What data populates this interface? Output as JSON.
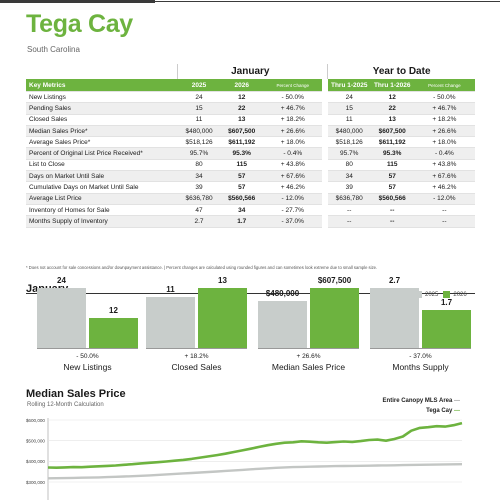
{
  "header": {
    "title": "Tega Cay",
    "subtitle": "South Carolina"
  },
  "table": {
    "group_headers": [
      "January",
      "Year to Date"
    ],
    "columns": [
      "Key Metrics",
      "2025",
      "2026",
      "Percent Change",
      "Thru 1-2025",
      "Thru 1-2026",
      "Percent Change"
    ],
    "rows": [
      [
        "New Listings",
        "24",
        "12",
        "- 50.0%",
        "24",
        "12",
        "- 50.0%"
      ],
      [
        "Pending Sales",
        "15",
        "22",
        "+ 46.7%",
        "15",
        "22",
        "+ 46.7%"
      ],
      [
        "Closed Sales",
        "11",
        "13",
        "+ 18.2%",
        "11",
        "13",
        "+ 18.2%"
      ],
      [
        "Median Sales Price*",
        "$480,000",
        "$607,500",
        "+ 26.6%",
        "$480,000",
        "$607,500",
        "+ 26.6%"
      ],
      [
        "Average Sales Price*",
        "$518,126",
        "$611,192",
        "+ 18.0%",
        "$518,126",
        "$611,192",
        "+ 18.0%"
      ],
      [
        "Percent of Original List Price Received*",
        "95.7%",
        "95.3%",
        "- 0.4%",
        "95.7%",
        "95.3%",
        "- 0.4%"
      ],
      [
        "List to Close",
        "80",
        "115",
        "+ 43.8%",
        "80",
        "115",
        "+ 43.8%"
      ],
      [
        "Days on Market Until Sale",
        "34",
        "57",
        "+ 67.6%",
        "34",
        "57",
        "+ 67.6%"
      ],
      [
        "Cumulative Days on Market Until Sale",
        "39",
        "57",
        "+ 46.2%",
        "39",
        "57",
        "+ 46.2%"
      ],
      [
        "Average List Price",
        "$636,780",
        "$560,566",
        "- 12.0%",
        "$636,780",
        "$560,566",
        "- 12.0%"
      ],
      [
        "Inventory of Homes for Sale",
        "47",
        "34",
        "- 27.7%",
        "--",
        "--",
        "--"
      ],
      [
        "Months Supply of Inventory",
        "2.7",
        "1.7",
        "- 37.0%",
        "--",
        "--",
        "--"
      ]
    ],
    "footnote": "* Does not account for sale concessions and/or downpayment assistance.  |  Percent changes are calculated using rounded figures and can sometimes look extreme due to small sample size."
  },
  "colors": {
    "green": "#6db33f",
    "gray": "#c8cdcb",
    "dark_gray": "#c3c6c4"
  },
  "chart_data": [
    {
      "type": "bar",
      "title": "January",
      "legend": [
        "2025",
        "2026"
      ],
      "legend_position": "top-right",
      "groups": [
        {
          "category": "New Listings",
          "change": "- 50.0%",
          "values": [
            24,
            12
          ],
          "labels": [
            "24",
            "12"
          ]
        },
        {
          "category": "Closed Sales",
          "change": "+ 18.2%",
          "values": [
            11,
            13
          ],
          "labels": [
            "11",
            "13"
          ]
        },
        {
          "category": "Median Sales Price",
          "change": "+ 26.6%",
          "values": [
            480000,
            607500
          ],
          "labels": [
            "$480,000",
            "$607,500"
          ]
        },
        {
          "category": "Months Supply",
          "change": "- 37.0%",
          "values": [
            2.7,
            1.7
          ],
          "labels": [
            "2.7",
            "1.7"
          ]
        }
      ]
    },
    {
      "type": "line",
      "title": "Median Sales Price",
      "subtitle": "Rolling 12-Month Calculation",
      "series": [
        {
          "name": "Entire Canopy MLS Area",
          "color": "#c3c6c4",
          "values": [
            318000,
            318500,
            319000,
            320000,
            321000,
            321500,
            322500,
            323500,
            325000,
            326500,
            328000,
            330000,
            332000,
            334500,
            337000,
            339000,
            341500,
            343500,
            346000,
            348500,
            351000,
            353500,
            356000,
            358500,
            361500,
            364000,
            366500,
            368500,
            370500,
            372000,
            373000,
            374000,
            375000,
            376000,
            377000,
            377500,
            378000,
            378500,
            379000,
            380000,
            380500,
            381000,
            382000,
            382500,
            383000,
            383500,
            384000,
            385000,
            385500,
            386000
          ]
        },
        {
          "name": "Tega Cay",
          "color": "#6db33f",
          "values": [
            370000,
            369000,
            370500,
            372000,
            371500,
            374000,
            376000,
            378000,
            380000,
            383000,
            386000,
            390000,
            393000,
            396000,
            399000,
            403000,
            407000,
            412000,
            418000,
            424000,
            430000,
            437000,
            445000,
            453000,
            461000,
            470000,
            478000,
            485000,
            490000,
            492000,
            497000,
            495000,
            492000,
            490000,
            493000,
            496000,
            494000,
            498000,
            503000,
            505000,
            500000,
            508000,
            520000,
            548000,
            562000,
            565000,
            570000,
            568000,
            575000,
            585000
          ]
        }
      ],
      "y_ticks": [
        "$600,000",
        "$500,000",
        "$400,000",
        "$300,000"
      ],
      "ylim": [
        300000,
        600000
      ]
    }
  ]
}
